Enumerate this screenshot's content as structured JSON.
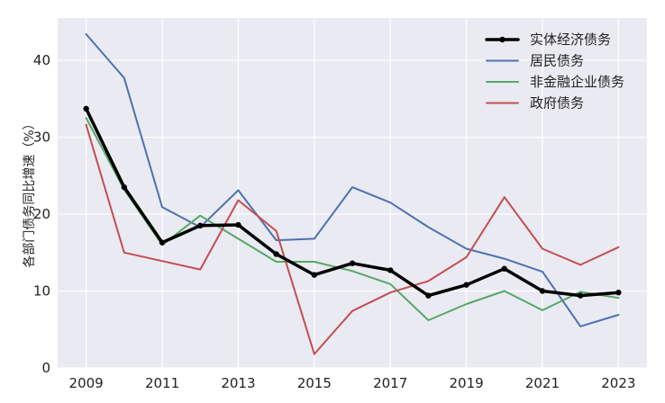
{
  "chart_data": {
    "type": "line",
    "title": "",
    "xlabel": "",
    "ylabel": "各部门债务同比增速（%）",
    "x": [
      2009,
      2010,
      2011,
      2012,
      2013,
      2014,
      2015,
      2016,
      2017,
      2018,
      2019,
      2020,
      2021,
      2022,
      2023
    ],
    "xticks": [
      "2009",
      "2011",
      "2013",
      "2015",
      "2017",
      "2019",
      "2021",
      "2023"
    ],
    "yticks": [
      "0",
      "10",
      "20",
      "30",
      "40"
    ],
    "xlim": [
      2008.25,
      2023.75
    ],
    "ylim": [
      0,
      45.5
    ],
    "grid": true,
    "legend_position": "top-right",
    "series": [
      {
        "name": "实体经济债务",
        "color": "#000000",
        "width": 3.5,
        "marker": true,
        "values": [
          33.7,
          23.5,
          16.3,
          18.5,
          18.6,
          14.8,
          12.1,
          13.6,
          12.7,
          9.4,
          10.8,
          12.9,
          10.0,
          9.4,
          9.8
        ]
      },
      {
        "name": "居民债务",
        "color": "#4c72b0",
        "width": 2,
        "values": [
          43.4,
          37.7,
          20.9,
          18.3,
          23.1,
          16.6,
          16.8,
          23.5,
          21.5,
          18.3,
          15.5,
          14.2,
          12.5,
          5.4,
          6.9
        ]
      },
      {
        "name": "非金融企业债务",
        "color": "#55a868",
        "width": 2,
        "values": [
          32.5,
          23.2,
          16.0,
          19.8,
          16.8,
          13.8,
          13.8,
          12.6,
          10.9,
          6.2,
          8.3,
          10.0,
          7.5,
          9.9,
          9.1
        ]
      },
      {
        "name": "政府债务",
        "color": "#c44e52",
        "width": 2,
        "values": [
          31.6,
          15.0,
          13.9,
          12.8,
          21.8,
          17.8,
          1.8,
          7.4,
          9.8,
          11.3,
          14.4,
          22.2,
          15.5,
          13.4,
          15.7
        ]
      }
    ]
  }
}
